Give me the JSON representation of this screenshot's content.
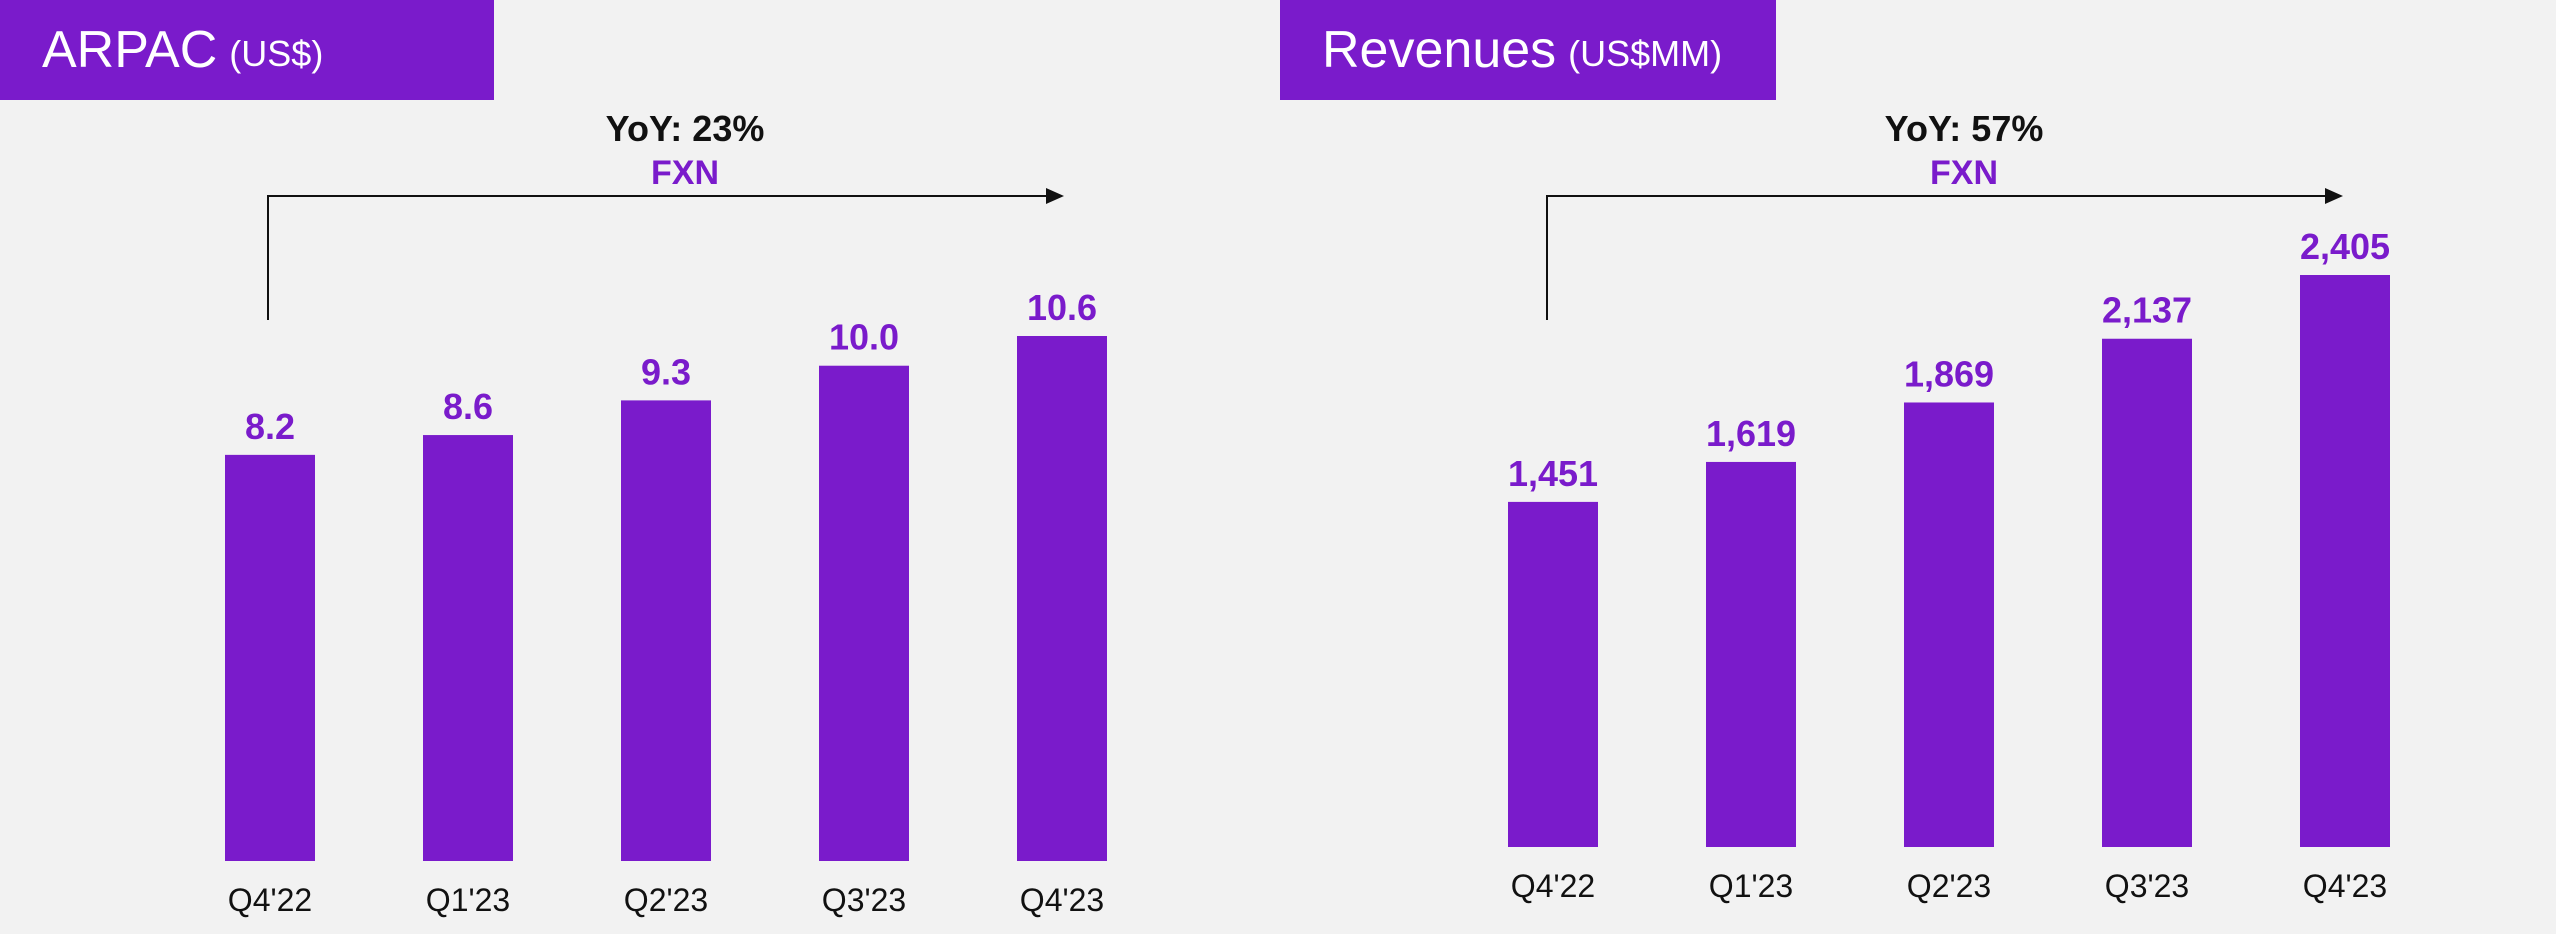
{
  "colors": {
    "accent": "#7a1bcb",
    "background": "#f2f2f2",
    "text": "#111111"
  },
  "left": {
    "title": "ARPAC",
    "unit": "(US$)",
    "yoy": "YoY: 23%",
    "fxn": "FXN"
  },
  "right": {
    "title": "Revenues",
    "unit": "(US$MM)",
    "yoy": "YoY: 57%",
    "fxn": "FXN"
  },
  "chart_data": [
    {
      "type": "bar",
      "title": "ARPAC (US$)",
      "categories": [
        "Q4'22",
        "Q1'23",
        "Q2'23",
        "Q3'23",
        "Q4'23"
      ],
      "values": [
        8.2,
        8.6,
        9.3,
        10.0,
        10.6
      ],
      "value_labels": [
        "8.2",
        "8.6",
        "9.3",
        "10.0",
        "10.6"
      ],
      "ylim": [
        0,
        10.6
      ],
      "annotation": "YoY: 23% FXN",
      "grid": false
    },
    {
      "type": "bar",
      "title": "Revenues (US$MM)",
      "categories": [
        "Q4'22",
        "Q1'23",
        "Q2'23",
        "Q3'23",
        "Q4'23"
      ],
      "values": [
        1451,
        1619,
        1869,
        2137,
        2405
      ],
      "value_labels": [
        "1,451",
        "1,619",
        "1,869",
        "2,137",
        "2,405"
      ],
      "ylim": [
        0,
        2405
      ],
      "annotation": "YoY: 57% FXN",
      "grid": false
    }
  ]
}
